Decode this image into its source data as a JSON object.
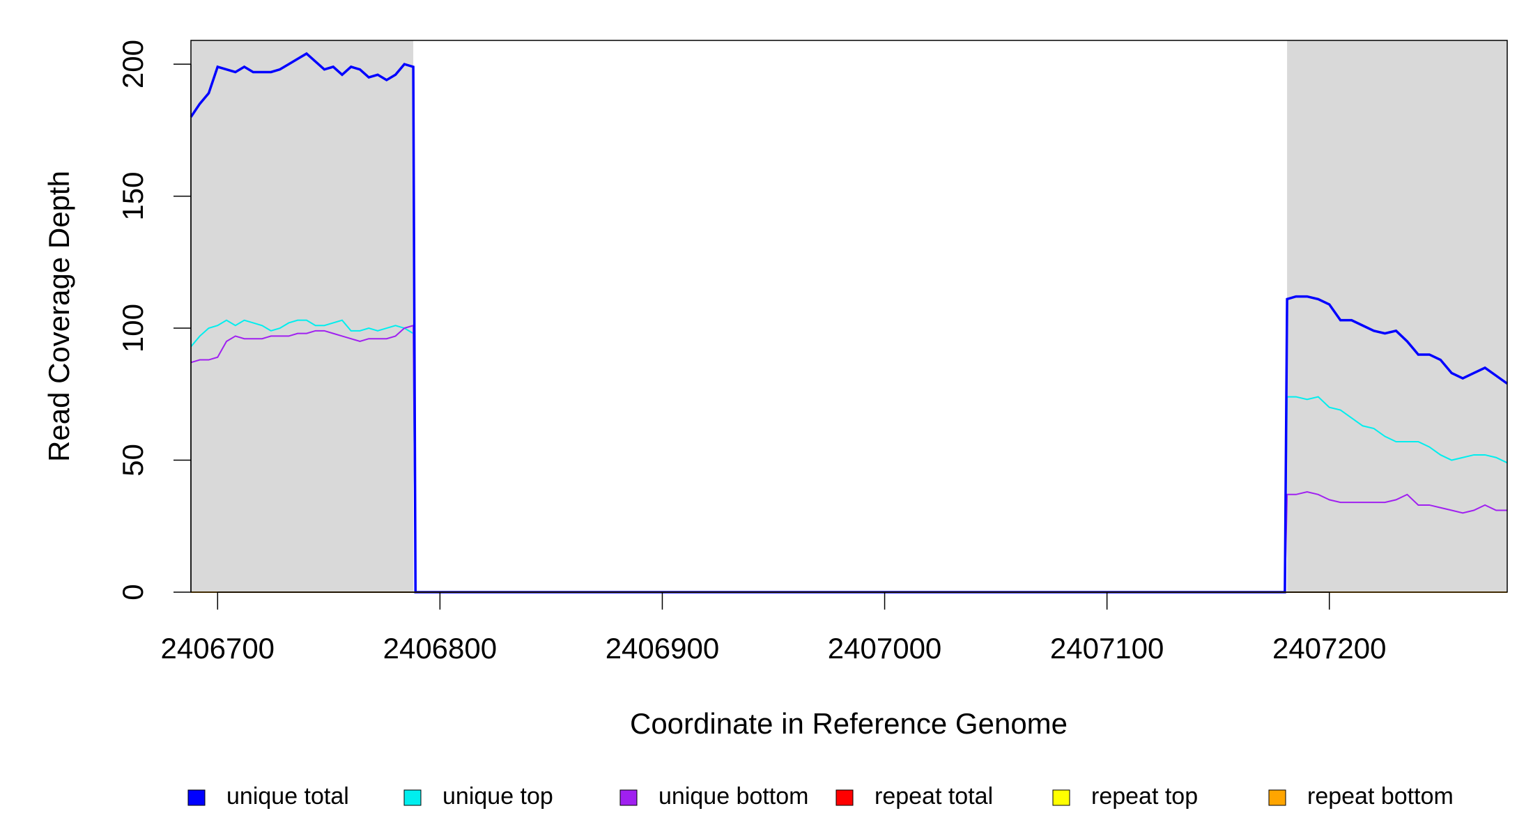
{
  "chart_data": {
    "type": "line",
    "x_label": "Coordinate in Reference Genome",
    "y_label": "Read Coverage Depth",
    "x": [
      2406688,
      2406692,
      2406696,
      2406700,
      2406704,
      2406708,
      2406712,
      2406716,
      2406720,
      2406724,
      2406728,
      2406732,
      2406736,
      2406740,
      2406744,
      2406748,
      2406752,
      2406756,
      2406760,
      2406764,
      2406768,
      2406772,
      2406776,
      2406780,
      2406784,
      2406788,
      2406789,
      2407180,
      2407181,
      2407185,
      2407190,
      2407195,
      2407200,
      2407205,
      2407210,
      2407215,
      2407220,
      2407225,
      2407230,
      2407235,
      2407240,
      2407245,
      2407250,
      2407255,
      2407260,
      2407265,
      2407270,
      2407275,
      2407280
    ],
    "series": [
      {
        "name": "repeat total",
        "color": "#ff0000",
        "values": [
          0,
          0,
          0,
          0,
          0,
          0,
          0,
          0,
          0,
          0,
          0,
          0,
          0,
          0,
          0,
          0,
          0,
          0,
          0,
          0,
          0,
          0,
          0,
          0,
          0,
          0,
          0,
          0,
          0,
          0,
          0,
          0,
          0,
          0,
          0,
          0,
          0,
          0,
          0,
          0,
          0,
          0,
          0,
          0,
          0,
          0,
          0,
          0,
          0
        ]
      },
      {
        "name": "repeat top",
        "color": "#ffff00",
        "values": [
          0,
          0,
          0,
          0,
          0,
          0,
          0,
          0,
          0,
          0,
          0,
          0,
          0,
          0,
          0,
          0,
          0,
          0,
          0,
          0,
          0,
          0,
          0,
          0,
          0,
          0,
          0,
          0,
          0,
          0,
          0,
          0,
          0,
          0,
          0,
          0,
          0,
          0,
          0,
          0,
          0,
          0,
          0,
          0,
          0,
          0,
          0,
          0,
          0
        ]
      },
      {
        "name": "unique top",
        "color": "#00eeee",
        "values": [
          93,
          97,
          100,
          101,
          103,
          101,
          103,
          102,
          101,
          99,
          100,
          102,
          103,
          103,
          101,
          101,
          102,
          103,
          99,
          99,
          100,
          99,
          100,
          101,
          100,
          98,
          0,
          0,
          74,
          74,
          73,
          74,
          70,
          69,
          66,
          63,
          62,
          59,
          57,
          57,
          57,
          55,
          52,
          50,
          51,
          52,
          52,
          51,
          49
        ]
      },
      {
        "name": "unique bottom",
        "color": "#a020f0",
        "values": [
          87,
          88,
          88,
          89,
          95,
          97,
          96,
          96,
          96,
          97,
          97,
          97,
          98,
          98,
          99,
          99,
          98,
          97,
          96,
          95,
          96,
          96,
          96,
          97,
          100,
          101,
          0,
          0,
          37,
          37,
          38,
          37,
          35,
          34,
          34,
          34,
          34,
          34,
          35,
          37,
          33,
          33,
          32,
          31,
          30,
          31,
          33,
          31,
          31
        ]
      },
      {
        "name": "unique total",
        "color": "#0000ff",
        "values": [
          180,
          185,
          189,
          199,
          198,
          197,
          199,
          197,
          197,
          197,
          198,
          200,
          202,
          204,
          201,
          198,
          199,
          196,
          199,
          198,
          195,
          196,
          194,
          196,
          200,
          199,
          0,
          0,
          111,
          112,
          112,
          111,
          109,
          103,
          103,
          101,
          99,
          98,
          99,
          95,
          90,
          90,
          88,
          83,
          81,
          83,
          85,
          82,
          79
        ]
      },
      {
        "name": "repeat bottom",
        "color": "#ffa500",
        "values": [
          0,
          0,
          0,
          0,
          0,
          0,
          0,
          0,
          0,
          0,
          0,
          0,
          0,
          0,
          0,
          0,
          0,
          0,
          0,
          0,
          0,
          0,
          0,
          0,
          0,
          0,
          0,
          0,
          0,
          0,
          0,
          0,
          0,
          0,
          0,
          0,
          0,
          0,
          0,
          0,
          0,
          0,
          0,
          0,
          0,
          0,
          0,
          0,
          0
        ]
      }
    ],
    "legend_order": [
      4,
      2,
      3,
      0,
      1,
      5
    ],
    "shaded_regions": [
      [
        2406688,
        2406788
      ],
      [
        2407181,
        2407280
      ]
    ],
    "shade_color": "#d9d9d9",
    "xlim": [
      2406688,
      2407280
    ],
    "xticks": [
      2406700,
      2406800,
      2406900,
      2407000,
      2407100,
      2407200
    ],
    "ylim": [
      0,
      209
    ],
    "yticks": [
      0,
      50,
      100,
      150,
      200
    ],
    "legend": "bottom"
  }
}
